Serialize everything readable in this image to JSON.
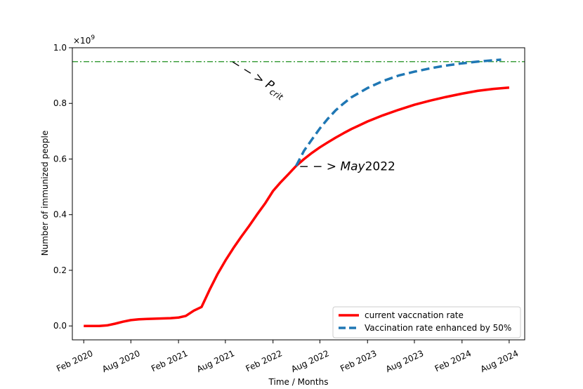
{
  "chart_data": {
    "type": "line",
    "title": "",
    "xlabel": "Time / Months",
    "ylabel": "Number of immunized people",
    "y_scale_label": "×10",
    "y_scale_exponent": "9",
    "y_multiplier": 1000000000.0,
    "ylim": [
      -0.05,
      1.0
    ],
    "xlim": [
      "2019-12-19",
      "2024-09-30"
    ],
    "x_ticks": [
      {
        "date": "2020-02-01",
        "label": "Feb 2020"
      },
      {
        "date": "2020-08-01",
        "label": "Aug 2020"
      },
      {
        "date": "2021-02-01",
        "label": "Feb 2021"
      },
      {
        "date": "2021-08-01",
        "label": "Aug 2021"
      },
      {
        "date": "2022-02-01",
        "label": "Feb 2022"
      },
      {
        "date": "2022-08-01",
        "label": "Aug 2022"
      },
      {
        "date": "2023-02-01",
        "label": "Feb 2023"
      },
      {
        "date": "2023-08-01",
        "label": "Aug 2023"
      },
      {
        "date": "2024-02-01",
        "label": "Feb 2024"
      },
      {
        "date": "2024-08-01",
        "label": "Aug 2024"
      }
    ],
    "y_ticks": [
      {
        "value": 0.0,
        "label": "0.0"
      },
      {
        "value": 0.2,
        "label": "0.2"
      },
      {
        "value": 0.4,
        "label": "0.4"
      },
      {
        "value": 0.6,
        "label": "0.6"
      },
      {
        "value": 0.8,
        "label": "0.8"
      },
      {
        "value": 1.0,
        "label": "1.0"
      }
    ],
    "grid": false,
    "legend_position": "lower-right",
    "series": [
      {
        "name": "current vaccnation rate",
        "color": "#ff0000",
        "style": "solid",
        "points": [
          [
            "2020-02-01",
            0.0
          ],
          [
            "2020-03-01",
            0.0
          ],
          [
            "2020-04-01",
            0.0
          ],
          [
            "2020-05-01",
            0.002
          ],
          [
            "2020-06-01",
            0.008
          ],
          [
            "2020-07-01",
            0.015
          ],
          [
            "2020-08-01",
            0.021
          ],
          [
            "2020-09-01",
            0.024
          ],
          [
            "2020-10-01",
            0.025
          ],
          [
            "2020-11-01",
            0.026
          ],
          [
            "2020-12-01",
            0.027
          ],
          [
            "2021-01-01",
            0.028
          ],
          [
            "2021-02-01",
            0.03
          ],
          [
            "2021-03-01",
            0.036
          ],
          [
            "2021-04-01",
            0.055
          ],
          [
            "2021-05-01",
            0.068
          ],
          [
            "2021-06-01",
            0.13
          ],
          [
            "2021-07-01",
            0.185
          ],
          [
            "2021-08-01",
            0.235
          ],
          [
            "2021-09-01",
            0.28
          ],
          [
            "2021-10-01",
            0.32
          ],
          [
            "2021-11-01",
            0.36
          ],
          [
            "2021-12-01",
            0.4
          ],
          [
            "2022-01-01",
            0.44
          ],
          [
            "2022-02-01",
            0.485
          ],
          [
            "2022-03-01",
            0.515
          ],
          [
            "2022-04-01",
            0.545
          ],
          [
            "2022-05-01",
            0.575
          ],
          [
            "2022-06-01",
            0.6
          ],
          [
            "2022-07-01",
            0.622
          ],
          [
            "2022-08-01",
            0.642
          ],
          [
            "2022-09-01",
            0.66
          ],
          [
            "2022-10-01",
            0.677
          ],
          [
            "2022-11-01",
            0.693
          ],
          [
            "2022-12-01",
            0.708
          ],
          [
            "2023-02-01",
            0.735
          ],
          [
            "2023-04-01",
            0.757
          ],
          [
            "2023-06-01",
            0.777
          ],
          [
            "2023-08-01",
            0.795
          ],
          [
            "2023-10-01",
            0.81
          ],
          [
            "2023-12-01",
            0.823
          ],
          [
            "2024-02-01",
            0.835
          ],
          [
            "2024-04-01",
            0.845
          ],
          [
            "2024-06-01",
            0.852
          ],
          [
            "2024-08-01",
            0.857
          ]
        ]
      },
      {
        "name": "Vaccination rate enhanced by 50%",
        "color": "#1f77b4",
        "style": "dashed",
        "points": [
          [
            "2022-05-01",
            0.575
          ],
          [
            "2022-06-01",
            0.63
          ],
          [
            "2022-07-01",
            0.67
          ],
          [
            "2022-08-01",
            0.71
          ],
          [
            "2022-09-01",
            0.745
          ],
          [
            "2022-10-01",
            0.775
          ],
          [
            "2022-11-01",
            0.8
          ],
          [
            "2022-12-01",
            0.822
          ],
          [
            "2023-02-01",
            0.855
          ],
          [
            "2023-04-01",
            0.88
          ],
          [
            "2023-06-01",
            0.9
          ],
          [
            "2023-08-01",
            0.914
          ],
          [
            "2023-10-01",
            0.926
          ],
          [
            "2023-12-01",
            0.936
          ],
          [
            "2024-02-01",
            0.944
          ],
          [
            "2024-04-01",
            0.95
          ],
          [
            "2024-06-01",
            0.955
          ],
          [
            "2024-07-01",
            0.957
          ]
        ]
      }
    ],
    "reference_line": {
      "y": 0.95,
      "color": "#008000",
      "style": "dashdot"
    },
    "annotations": {
      "pcrit": {
        "arrow": "− − >",
        "symbol": "P",
        "subscript": "crit",
        "date": "2021-08-01",
        "y": 0.95
      },
      "may": {
        "arrow": "− − >",
        "italic": "May",
        "plain": "2022",
        "date": "2022-05-01",
        "y": 0.575
      }
    }
  }
}
